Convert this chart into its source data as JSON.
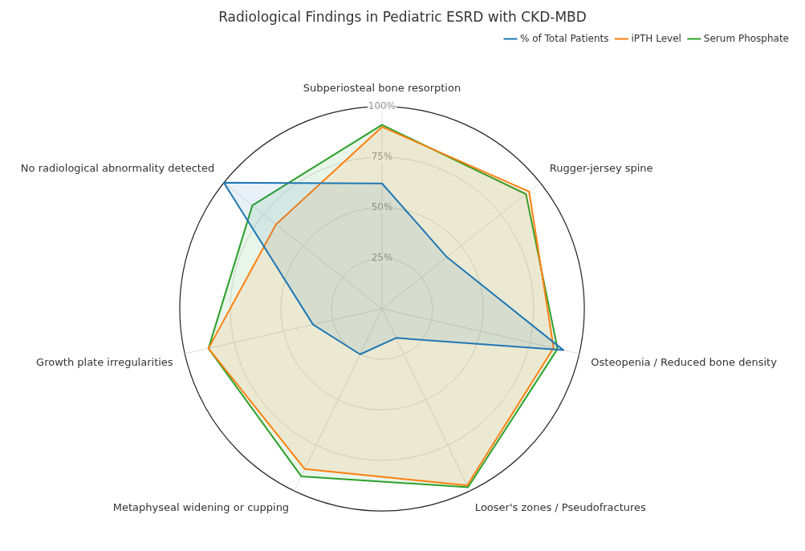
{
  "chart_data": {
    "type": "radar",
    "title": "Radiological Findings in Pediatric ESRD with CKD-MBD",
    "categories": [
      "Subperiosteal bone resorption",
      "Rugger-jersey spine",
      "Osteopenia / Reduced bone density",
      "Looser's zones / Pseudofractures",
      "Metaphyseal widening or cupping",
      "Growth plate irregularities",
      "No radiological abnormality detected"
    ],
    "series": [
      {
        "name": "% of Total Patients",
        "color": "#1f77b4",
        "values": [
          62,
          41,
          92,
          16,
          25,
          35,
          100
        ]
      },
      {
        "name": "iPTH Level",
        "color": "#ff7f0e",
        "values": [
          90,
          93,
          87,
          97,
          88,
          88,
          67
        ]
      },
      {
        "name": "Serum Phosphate",
        "color": "#2ca02c",
        "values": [
          91,
          91,
          89,
          98,
          92,
          88,
          82
        ]
      }
    ],
    "ylim": [
      0,
      100
    ],
    "yticks": [
      {
        "value": 25,
        "label": "25%"
      },
      {
        "value": 50,
        "label": "50%"
      },
      {
        "value": 75,
        "label": "75%"
      },
      {
        "value": 100,
        "label": "100%"
      }
    ],
    "grid": true,
    "legend": "top right",
    "marker": "none",
    "line_style": "solid"
  }
}
